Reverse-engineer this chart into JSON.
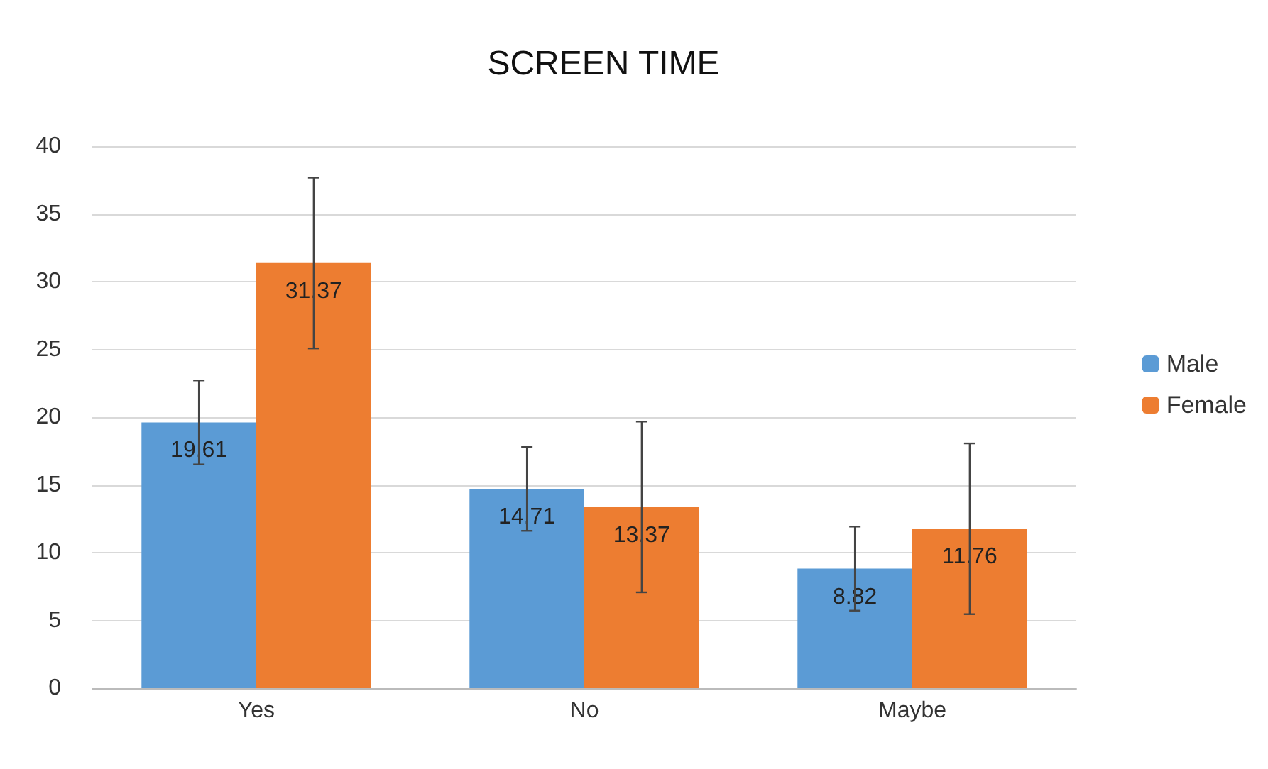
{
  "chart_data": {
    "type": "bar",
    "title": "SCREEN TIME",
    "categories": [
      "Yes",
      "No",
      "Maybe"
    ],
    "series": [
      {
        "name": "Male",
        "color": "#5b9bd5",
        "values": [
          19.61,
          14.71,
          8.82
        ],
        "errors": [
          3.1,
          3.1,
          3.1
        ]
      },
      {
        "name": "Female",
        "color": "#ed7d31",
        "values": [
          31.37,
          13.37,
          11.76
        ],
        "errors": [
          6.3,
          6.3,
          6.3
        ]
      }
    ],
    "ylim": [
      0,
      40
    ],
    "yticks": [
      0,
      5,
      10,
      15,
      20,
      25,
      30,
      35,
      40
    ],
    "grid": "y",
    "legend": "right",
    "data_labels": true
  }
}
